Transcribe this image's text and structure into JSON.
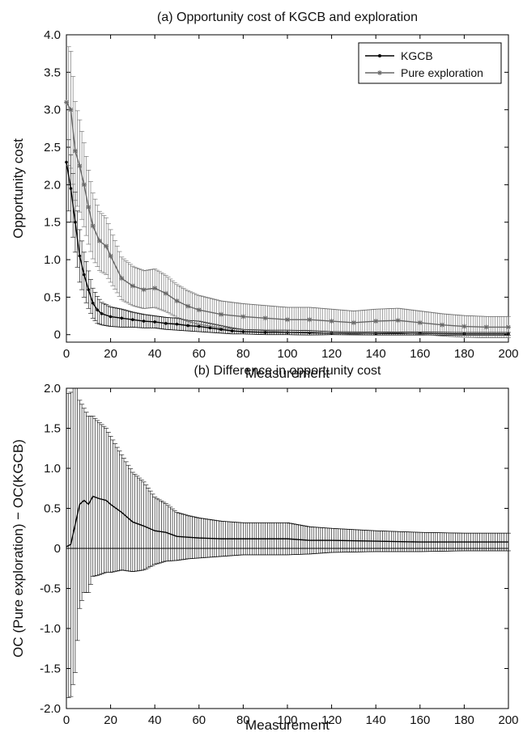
{
  "chart_data": [
    {
      "type": "line",
      "title": "(a) Opportunity cost of KGCB and exploration",
      "xlabel": "Measurement",
      "ylabel": "Opportunity cost",
      "xlim": [
        0,
        200
      ],
      "ylim": [
        -0.1,
        4.0
      ],
      "xticks": [
        0,
        20,
        40,
        60,
        80,
        100,
        120,
        140,
        160,
        180,
        200
      ],
      "yticks": [
        0,
        0.5,
        1.0,
        1.5,
        2.0,
        2.5,
        3.0,
        3.5,
        4.0
      ],
      "ytick_labels": [
        "0",
        "0.5",
        "1.0",
        "1.5",
        "2.0",
        "2.5",
        "3.0",
        "3.5",
        "4.0"
      ],
      "legend_position": "top-right",
      "error_bars": true,
      "series": [
        {
          "name": "KGCB",
          "marker": "dot",
          "color": "#000000",
          "x": [
            0,
            2,
            4,
            6,
            8,
            10,
            12,
            14,
            16,
            20,
            25,
            30,
            35,
            40,
            45,
            50,
            55,
            60,
            65,
            70,
            75,
            80,
            90,
            100,
            110,
            120,
            140,
            160,
            180,
            200
          ],
          "y": [
            2.3,
            1.95,
            1.5,
            1.05,
            0.8,
            0.6,
            0.42,
            0.33,
            0.28,
            0.24,
            0.22,
            0.2,
            0.18,
            0.17,
            0.15,
            0.14,
            0.12,
            0.11,
            0.09,
            0.07,
            0.05,
            0.04,
            0.03,
            0.03,
            0.025,
            0.02,
            0.015,
            0.015,
            0.01,
            0.01
          ],
          "err": [
            0.5,
            0.45,
            0.4,
            0.35,
            0.3,
            0.25,
            0.2,
            0.18,
            0.15,
            0.13,
            0.12,
            0.1,
            0.09,
            0.08,
            0.08,
            0.08,
            0.07,
            0.07,
            0.06,
            0.05,
            0.04,
            0.03,
            0.03,
            0.03,
            0.03,
            0.02,
            0.02,
            0.02,
            0.02,
            0.02
          ]
        },
        {
          "name": "Pure exploration",
          "marker": "asterisk",
          "color": "#666666",
          "x": [
            0,
            2,
            4,
            6,
            8,
            10,
            12,
            15,
            18,
            20,
            25,
            30,
            35,
            40,
            45,
            50,
            55,
            60,
            70,
            80,
            90,
            100,
            110,
            120,
            130,
            140,
            150,
            160,
            170,
            180,
            190,
            200
          ],
          "y": [
            3.1,
            3.0,
            2.45,
            2.25,
            2.0,
            1.7,
            1.45,
            1.25,
            1.18,
            1.05,
            0.75,
            0.65,
            0.6,
            0.62,
            0.55,
            0.45,
            0.38,
            0.33,
            0.27,
            0.24,
            0.22,
            0.2,
            0.2,
            0.18,
            0.16,
            0.18,
            0.19,
            0.16,
            0.13,
            0.11,
            0.1,
            0.1
          ]
        }
      ]
    },
    {
      "type": "line",
      "title": "(b) Difference in opportunity cost",
      "xlabel": "Measurement",
      "ylabel": "OC (Pure exploration) − OC(KGCB)",
      "xlim": [
        0,
        200
      ],
      "ylim": [
        -2.0,
        2.0
      ],
      "xticks": [
        0,
        20,
        40,
        60,
        80,
        100,
        120,
        140,
        160,
        180,
        200
      ],
      "yticks": [
        -2.0,
        -1.5,
        -1.0,
        -0.5,
        0,
        0.5,
        1.0,
        1.5,
        2.0
      ],
      "ytick_labels": [
        "-2.0",
        "-1.5",
        "-1.0",
        "-0.5",
        "0",
        "0.5",
        "1.0",
        "1.5",
        "2.0"
      ],
      "reference_line_y": 0,
      "error_bars": true,
      "series": [
        {
          "color": "#000000",
          "x": [
            0,
            2,
            4,
            6,
            8,
            10,
            12,
            15,
            18,
            20,
            25,
            30,
            35,
            40,
            45,
            50,
            55,
            60,
            70,
            80,
            90,
            100,
            110,
            120,
            140,
            160,
            180,
            200
          ],
          "y": [
            0.02,
            0.05,
            0.3,
            0.55,
            0.6,
            0.55,
            0.65,
            0.62,
            0.6,
            0.55,
            0.45,
            0.33,
            0.28,
            0.22,
            0.2,
            0.15,
            0.14,
            0.13,
            0.12,
            0.12,
            0.12,
            0.12,
            0.1,
            0.1,
            0.09,
            0.08,
            0.08,
            0.08
          ],
          "err": [
            1.9,
            1.9,
            1.85,
            1.3,
            1.15,
            1.1,
            1.0,
            0.95,
            0.9,
            0.85,
            0.72,
            0.62,
            0.55,
            0.42,
            0.36,
            0.3,
            0.27,
            0.25,
            0.22,
            0.2,
            0.2,
            0.2,
            0.17,
            0.15,
            0.13,
            0.12,
            0.11,
            0.11
          ]
        }
      ]
    }
  ]
}
